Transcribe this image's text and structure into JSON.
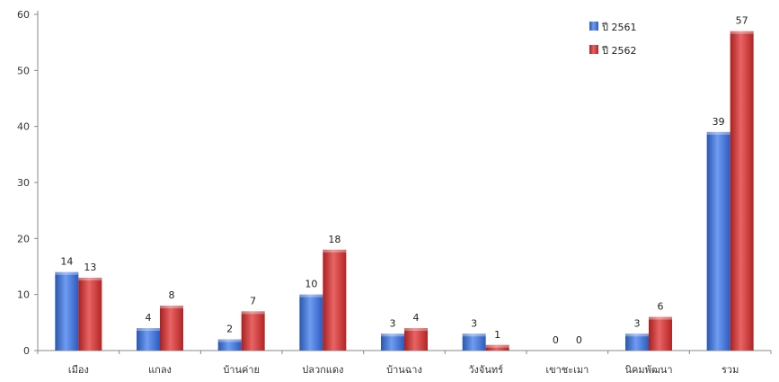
{
  "chart_data": {
    "type": "bar",
    "categories": [
      "เมือง",
      "แกลง",
      "บ้านค่าย",
      "ปลวกแดง",
      "บ้านฉาง",
      "วังจันทร์",
      "เขาชะเมา",
      "นิคมพัฒนา",
      "รวม"
    ],
    "series": [
      {
        "name": "ปี 2561",
        "values": [
          14,
          4,
          2,
          10,
          3,
          3,
          0,
          3,
          39
        ],
        "color": "#3b6fd0"
      },
      {
        "name": "ปี 2562",
        "values": [
          13,
          8,
          7,
          18,
          4,
          1,
          0,
          6,
          57
        ],
        "color": "#c62f2f"
      }
    ],
    "ylim": [
      0,
      60
    ],
    "yticks": [
      0,
      10,
      20,
      30,
      40,
      50,
      60
    ],
    "data_labels": true,
    "grid": false,
    "legend_position": "top-right"
  }
}
